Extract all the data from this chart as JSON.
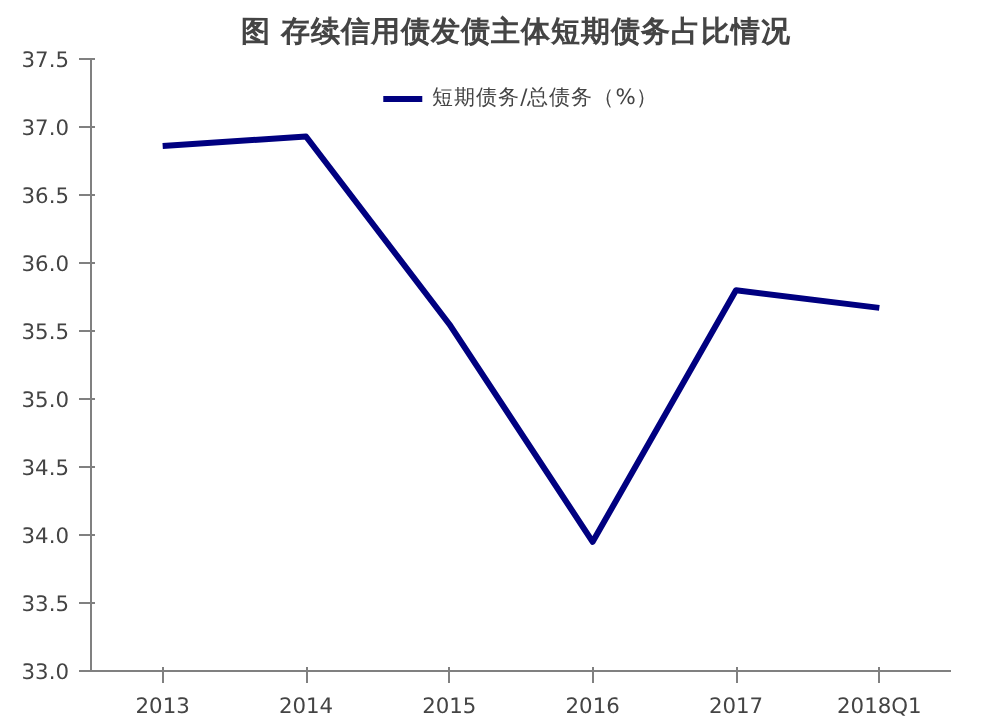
{
  "chart_data": {
    "type": "line",
    "title": "图  存续信用债发债主体短期债务占比情况",
    "categories": [
      "2013",
      "2014",
      "2015",
      "2016",
      "2017",
      "2018Q1"
    ],
    "series": [
      {
        "name": "短期债务/总债务（%）",
        "color": "#000080",
        "values": [
          36.86,
          36.93,
          35.55,
          33.95,
          35.8,
          35.67
        ]
      }
    ],
    "ylim": [
      33.0,
      37.5
    ],
    "yticks": [
      {
        "value": 33,
        "label": "33.0"
      },
      33.5,
      {
        "value": 34,
        "label": "34.0"
      },
      34.5,
      {
        "value": 35,
        "label": "35.0"
      },
      35.5,
      {
        "value": 36,
        "label": "36.0"
      },
      36.5,
      {
        "value": 37,
        "label": "37.0"
      },
      37.5
    ],
    "grid": false,
    "legend": "top",
    "line_style": "solid"
  }
}
